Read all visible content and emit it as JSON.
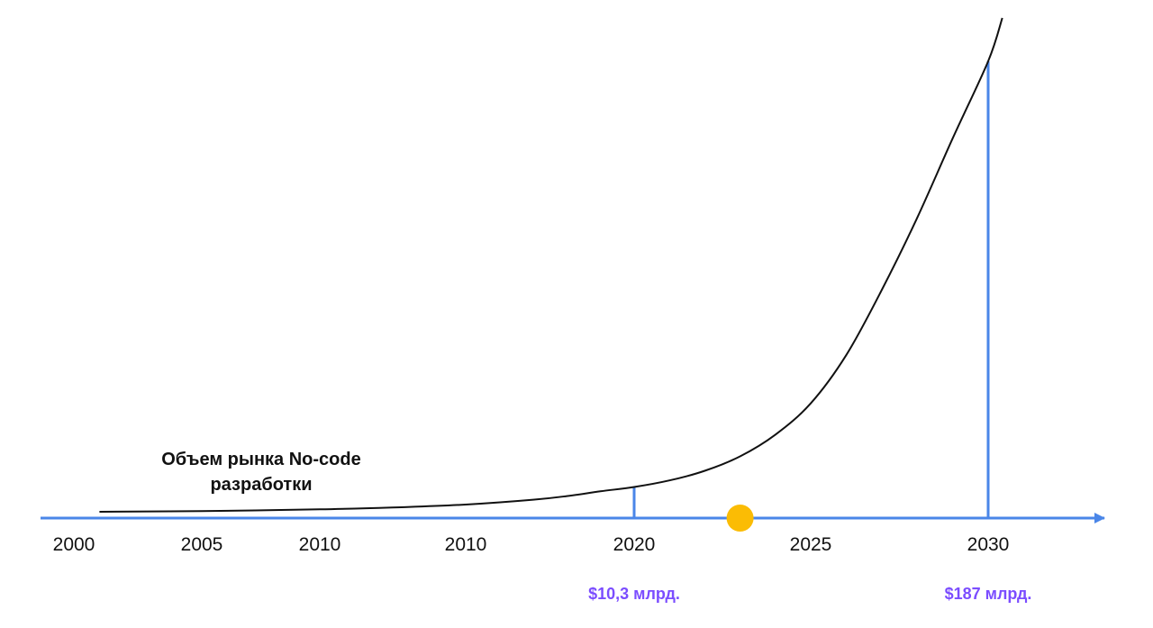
{
  "chart_data": {
    "type": "line",
    "title": "",
    "series_label_lines": [
      "Объем рынка No-code",
      "разработки"
    ],
    "xlabel": "",
    "ylabel": "",
    "x_tick_labels": [
      "2000",
      "2005",
      "2010",
      "2010",
      "2020",
      "2025",
      "2030"
    ],
    "xlim": [
      2000,
      2033
    ],
    "series": [
      {
        "x": [
          2001,
          2005,
          2010,
          2013,
          2015,
          2017,
          2018,
          2019,
          2020,
          2021,
          2022,
          2023,
          2024,
          2025,
          2026,
          2027,
          2028,
          2029,
          2030,
          2030.4
        ],
        "values": [
          0,
          0.3,
          1,
          2,
          3,
          5,
          6.5,
          8.5,
          10.3,
          13,
          17,
          23,
          32,
          45,
          65,
          92,
          122,
          155,
          187,
          205
        ]
      }
    ],
    "annotations": [
      {
        "x": 2020,
        "value": 10.3,
        "label": "$10,3 млрд."
      },
      {
        "x": 2030,
        "value": 187,
        "label": "$187 млрд."
      }
    ],
    "current_marker_x": 2023,
    "colors": {
      "axis": "#4a86e8",
      "curve": "#111111",
      "marker": "#fbbc04",
      "value_label": "#7b4dff"
    }
  }
}
